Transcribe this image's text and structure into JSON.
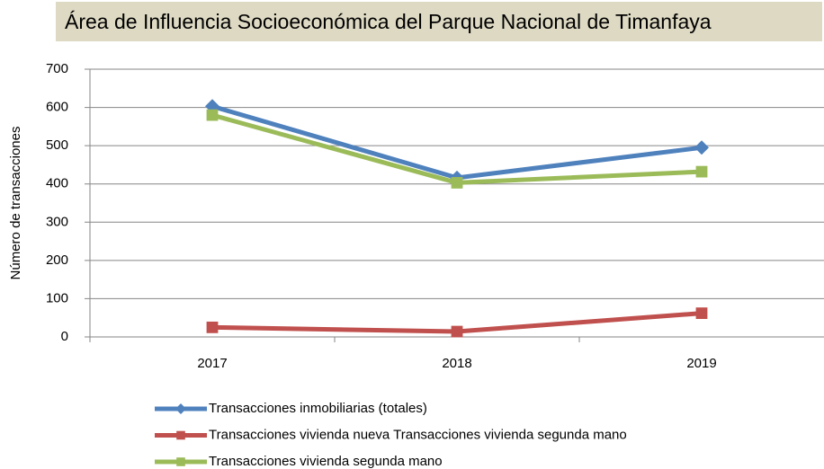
{
  "chart_data": {
    "type": "line",
    "title": "Área de Influencia Socioeconómica del Parque Nacional de Timanfaya",
    "y_label": "Número de transacciones",
    "categories": [
      "2017",
      "2018",
      "2019"
    ],
    "series": [
      {
        "name": "Transacciones inmobiliarias (totales)",
        "color": "#4f81bd",
        "marker": "diamond",
        "values": [
          603,
          416,
          495
        ]
      },
      {
        "name": "Transacciones vivienda nueva Transacciones vivienda segunda mano",
        "color": "#c0504d",
        "marker": "square",
        "values": [
          25,
          14,
          62
        ]
      },
      {
        "name": "Transacciones vivienda segunda mano",
        "color": "#9bbb59",
        "marker": "square",
        "values": [
          580,
          403,
          432
        ]
      }
    ],
    "ylim": [
      0,
      700
    ],
    "yticks": [
      0,
      100,
      200,
      300,
      400,
      500,
      600,
      700
    ],
    "grid": true
  }
}
